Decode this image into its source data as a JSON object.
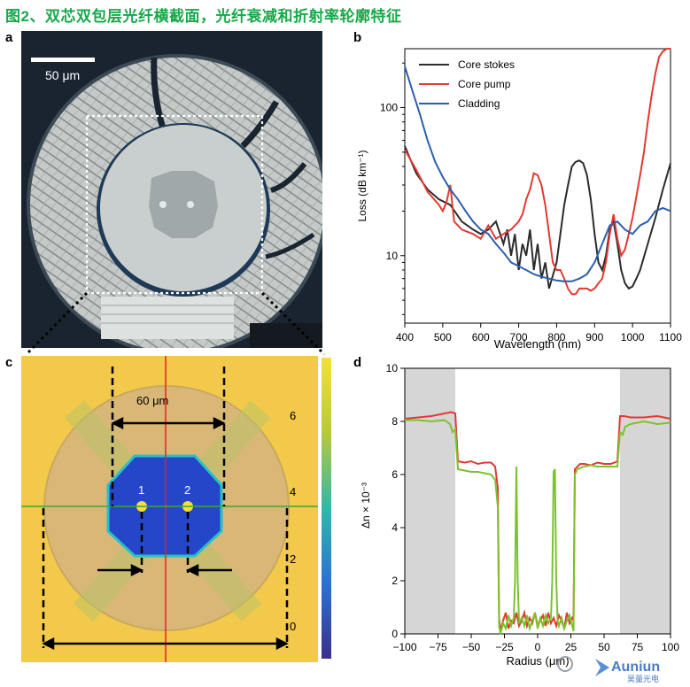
{
  "figure_title": "图2、双芯双包层光纤横截面，光纤衰减和折射率轮廓特征",
  "panels": {
    "a": {
      "label": "a",
      "scale_bar": "50 μm"
    },
    "b": {
      "label": "b"
    },
    "c": {
      "label": "c",
      "dimension": "60 μm",
      "core1": "1",
      "core2": "2",
      "colorbar_ticks": [
        "6",
        "4",
        "2",
        "0"
      ]
    },
    "d": {
      "label": "d"
    }
  },
  "watermark": {
    "text": "Auniun",
    "sub": "昊量光电"
  },
  "chart_data": [
    {
      "panel": "b",
      "type": "line",
      "xlabel": "Wavelength (nm)",
      "ylabel": "Loss (dB km⁻¹)",
      "xlim": [
        400,
        1100
      ],
      "ylim": [
        3.5,
        250
      ],
      "yscale": "log",
      "x_ticks": [
        "400",
        "500",
        "600",
        "700",
        "800",
        "900",
        "1000",
        "1100"
      ],
      "y_ticks": [
        "10",
        "100"
      ],
      "legend_position": "top-left",
      "series": [
        {
          "name": "Core stokes",
          "color": "#2b2b2b",
          "x": [
            400,
            430,
            460,
            490,
            520,
            550,
            580,
            600,
            620,
            640,
            660,
            670,
            680,
            690,
            700,
            710,
            720,
            730,
            740,
            750,
            760,
            770,
            780,
            800,
            820,
            830,
            840,
            850,
            860,
            870,
            880,
            890,
            900,
            910,
            920,
            930,
            940,
            950,
            960,
            970,
            980,
            990,
            1000,
            1010,
            1020,
            1040,
            1060,
            1080,
            1100
          ],
          "y": [
            55,
            36,
            28,
            24,
            22,
            17,
            15,
            14,
            15,
            17,
            12,
            15,
            10,
            14,
            8,
            12,
            10,
            15,
            8,
            12,
            7,
            9,
            6,
            9,
            22,
            30,
            40,
            43,
            44,
            42,
            35,
            24,
            14,
            9,
            8,
            10,
            15,
            17,
            12,
            8,
            6.5,
            6,
            6.2,
            7,
            8,
            12,
            18,
            28,
            42
          ]
        },
        {
          "name": "Core pump",
          "color": "#e03a32",
          "x": [
            400,
            430,
            460,
            490,
            500,
            510,
            520,
            530,
            550,
            580,
            600,
            620,
            640,
            660,
            680,
            700,
            710,
            720,
            730,
            740,
            750,
            760,
            770,
            780,
            790,
            800,
            810,
            820,
            830,
            840,
            850,
            860,
            870,
            880,
            890,
            900,
            910,
            920,
            930,
            940,
            950,
            960,
            970,
            980,
            990,
            1000,
            1010,
            1020,
            1030,
            1040,
            1050,
            1060,
            1070,
            1080,
            1090,
            1100
          ],
          "y": [
            52,
            38,
            27,
            22,
            20,
            23,
            30,
            17,
            15,
            14,
            13,
            16,
            13,
            14,
            15,
            17,
            19,
            24,
            28,
            36,
            35,
            30,
            22,
            14,
            9,
            8,
            8,
            7,
            6,
            5.5,
            5.5,
            6,
            6,
            6,
            5.8,
            6,
            6.5,
            7,
            9,
            14,
            19,
            13,
            10,
            11,
            14,
            18,
            25,
            35,
            50,
            80,
            120,
            170,
            220,
            240,
            250,
            250
          ]
        },
        {
          "name": "Cladding",
          "color": "#2b5fad",
          "x": [
            400,
            420,
            440,
            460,
            480,
            500,
            520,
            540,
            560,
            580,
            600,
            620,
            640,
            660,
            680,
            700,
            720,
            740,
            760,
            780,
            800,
            820,
            840,
            860,
            880,
            900,
            920,
            940,
            960,
            980,
            1000,
            1020,
            1040,
            1060,
            1080,
            1100
          ],
          "y": [
            190,
            130,
            90,
            60,
            43,
            34,
            28,
            24,
            20,
            17,
            15,
            14,
            12,
            10.5,
            9,
            8.5,
            8,
            7.5,
            7.2,
            7,
            6.8,
            6.7,
            6.7,
            7,
            7.5,
            9,
            12,
            16,
            17,
            15,
            14,
            16,
            17,
            20,
            21,
            20
          ]
        }
      ]
    },
    {
      "panel": "d",
      "type": "line",
      "xlabel": "Radius (μm)",
      "ylabel": "Δn × 10⁻³",
      "xlim": [
        -100,
        100
      ],
      "ylim": [
        0,
        10
      ],
      "x_ticks": [
        "−100",
        "−75",
        "−50",
        "−25",
        "0",
        "25",
        "50",
        "75",
        "100"
      ],
      "y_ticks": [
        "0",
        "2",
        "4",
        "6",
        "8",
        "10"
      ],
      "shaded_regions": [
        [
          -100,
          -62
        ],
        [
          62,
          100
        ]
      ],
      "series": [
        {
          "color": "#e03a32",
          "x": [
            -100,
            -90,
            -80,
            -70,
            -65,
            -62,
            -60,
            -55,
            -50,
            -45,
            -40,
            -35,
            -32,
            -30,
            -29,
            -28,
            -26,
            -24,
            -22,
            -20,
            -18,
            -16,
            -14,
            -12,
            -10,
            -8,
            -6,
            -4,
            -2,
            0,
            2,
            4,
            6,
            8,
            10,
            12,
            14,
            16,
            18,
            20,
            22,
            24,
            26,
            27,
            28,
            30,
            32,
            35,
            40,
            45,
            50,
            55,
            58,
            60,
            62,
            65,
            70,
            80,
            90,
            100
          ],
          "y": [
            8.1,
            8.15,
            8.2,
            8.3,
            8.35,
            8.3,
            6.5,
            6.45,
            6.5,
            6.4,
            6.45,
            6.45,
            6.3,
            5.5,
            0.6,
            0.1,
            0.5,
            0.8,
            0.2,
            0.5,
            0.4,
            0.8,
            0.3,
            0.5,
            0.8,
            0.3,
            0.6,
            0.4,
            0.8,
            0.3,
            0.5,
            0.7,
            0.3,
            0.8,
            0.4,
            0.6,
            0.3,
            0.7,
            0.5,
            0.2,
            0.8,
            0.4,
            0.6,
            0.5,
            6.2,
            6.3,
            6.4,
            6.4,
            6.35,
            6.45,
            6.4,
            6.4,
            6.45,
            6.5,
            8.2,
            8.2,
            8.15,
            8.15,
            8.2,
            8.1
          ]
        },
        {
          "color": "#7cc22e",
          "x": [
            -100,
            -90,
            -80,
            -70,
            -66,
            -64,
            -62,
            -60,
            -55,
            -50,
            -45,
            -40,
            -35,
            -32,
            -30,
            -29,
            -28,
            -26,
            -24,
            -22,
            -20,
            -18,
            -17,
            -16,
            -15,
            -14,
            -12,
            -10,
            -8,
            -6,
            -4,
            -2,
            0,
            2,
            4,
            6,
            8,
            10,
            11,
            12,
            13,
            14,
            15,
            16,
            18,
            20,
            22,
            24,
            26,
            27,
            28,
            30,
            35,
            40,
            45,
            50,
            55,
            60,
            62,
            64,
            66,
            70,
            80,
            90,
            100
          ],
          "y": [
            8.05,
            8.05,
            8.0,
            8.05,
            7.9,
            7.6,
            7.7,
            6.2,
            6.15,
            6.1,
            6.1,
            6.05,
            6.0,
            5.8,
            4.8,
            0.3,
            0.0,
            0.4,
            0.2,
            0.7,
            0.3,
            0.6,
            2.0,
            6.3,
            2.0,
            0.4,
            0.6,
            0.3,
            0.7,
            0.2,
            0.5,
            0.8,
            0.2,
            0.6,
            0.3,
            0.7,
            0.4,
            0.6,
            2.0,
            6.1,
            6.2,
            2.0,
            0.5,
            0.3,
            0.6,
            0.2,
            0.5,
            0.7,
            0.3,
            0.1,
            6.0,
            6.2,
            6.3,
            6.35,
            6.3,
            6.3,
            6.3,
            6.3,
            7.6,
            7.5,
            7.8,
            7.9,
            8.0,
            7.9,
            7.95
          ]
        }
      ]
    }
  ]
}
